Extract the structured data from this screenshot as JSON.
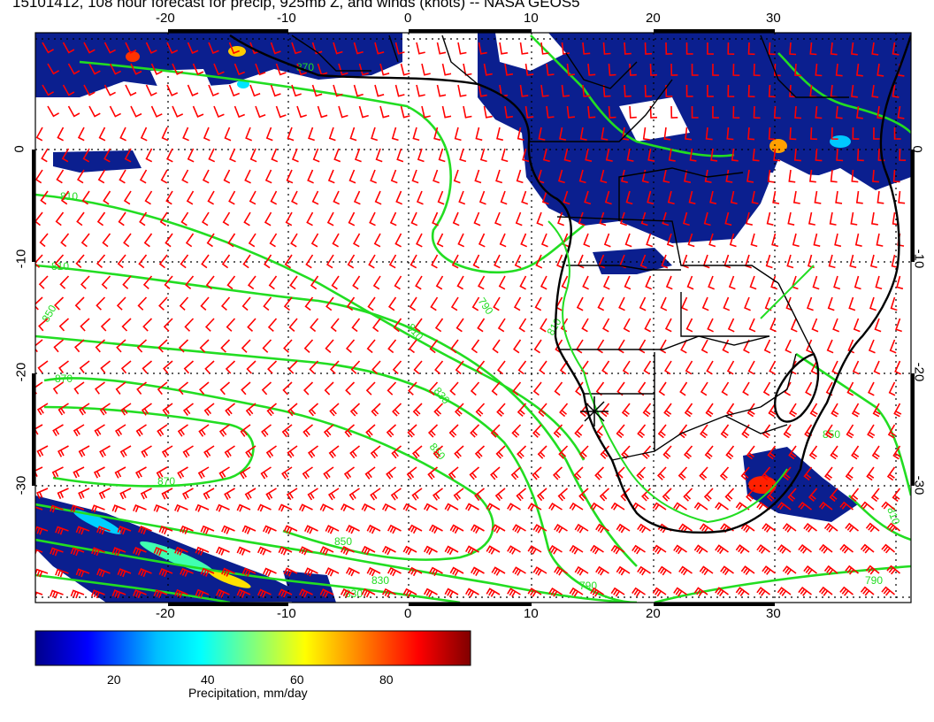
{
  "title": "15101412, 108 hour forecast for precip, 925mb Z, and winds (knots) -- NASA GEOS5",
  "map": {
    "lon_range": [
      -30,
      40
    ],
    "lat_range": [
      -40,
      10
    ],
    "lon_ticks": [
      "-20",
      "-10",
      "0",
      "10",
      "20",
      "30"
    ],
    "lat_ticks": [
      "0",
      "-10",
      "-20",
      "-30"
    ],
    "gridlines": "dotted",
    "contour_color": "#22dd22",
    "wind_barb_color": "#ff0000",
    "coastline_color": "#000000",
    "contour_labels": [
      "810",
      "810",
      "850",
      "870",
      "870",
      "850",
      "830",
      "830",
      "810",
      "790",
      "790",
      "850",
      "830",
      "810",
      "790",
      "810",
      "850",
      "870"
    ],
    "marker_icon": "asterisk-icon"
  },
  "colorbar": {
    "ticks": [
      "20",
      "40",
      "60",
      "80"
    ],
    "range": [
      0,
      100
    ],
    "title": "Precipitation, mm/day",
    "colors": [
      "#00008b",
      "#0000ff",
      "#00bfff",
      "#00ffff",
      "#7fff7f",
      "#ffff00",
      "#ff8000",
      "#ff0000",
      "#800000"
    ]
  }
}
